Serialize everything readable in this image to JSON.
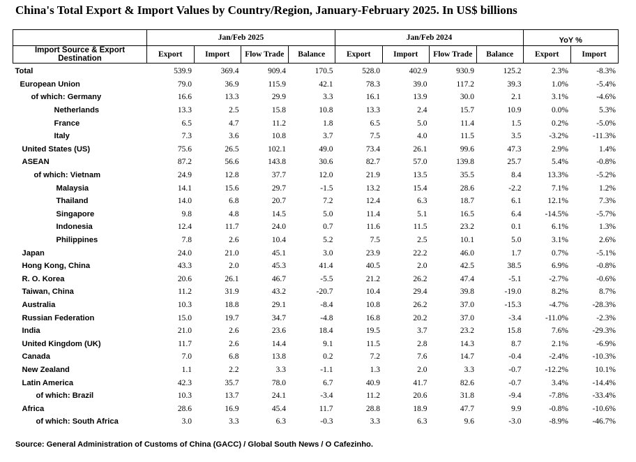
{
  "title": "China's Total Export & Import Values by Country/Region, January-February 2025. In US$ billions",
  "header": {
    "groups": [
      "Jan/Feb 2025",
      "Jan/Feb 2024",
      "YoY %"
    ],
    "source_col": "Import Source & Export Destination",
    "cols": [
      "Export",
      "Import",
      "Flow Trade",
      "Balance",
      "Export",
      "Import",
      "Flow Trade",
      "Balance",
      "Export",
      "Import"
    ]
  },
  "rows": [
    {
      "name": "Total",
      "indent": 0,
      "values": [
        "539.9",
        "369.4",
        "909.4",
        "170.5",
        "528.0",
        "402.9",
        "930.9",
        "125.2",
        "2.3%",
        "-8.3%"
      ]
    },
    {
      "name": "European Union",
      "indent": 1,
      "values": [
        "79.0",
        "36.9",
        "115.9",
        "42.1",
        "78.3",
        "39.0",
        "117.2",
        "39.3",
        "1.0%",
        "-5.4%"
      ]
    },
    {
      "name": "of which: Germany",
      "indent": 3,
      "values": [
        "16.6",
        "13.3",
        "29.9",
        "3.3",
        "16.1",
        "13.9",
        "30.0",
        "2.1",
        "3.1%",
        "-4.6%"
      ]
    },
    {
      "name": "Netherlands",
      "indent": 4,
      "values": [
        "13.3",
        "2.5",
        "15.8",
        "10.8",
        "13.3",
        "2.4",
        "15.7",
        "10.9",
        "0.0%",
        "5.3%"
      ]
    },
    {
      "name": "France",
      "indent": 4,
      "values": [
        "6.5",
        "4.7",
        "11.2",
        "1.8",
        "6.5",
        "5.0",
        "11.4",
        "1.5",
        "0.2%",
        "-5.0%"
      ]
    },
    {
      "name": "Italy",
      "indent": 4,
      "values": [
        "7.3",
        "3.6",
        "10.8",
        "3.7",
        "7.5",
        "4.0",
        "11.5",
        "3.5",
        "-3.2%",
        "-11.3%"
      ]
    },
    {
      "name": "United States (US)",
      "indent": 2,
      "values": [
        "75.6",
        "26.5",
        "102.1",
        "49.0",
        "73.4",
        "26.1",
        "99.6",
        "47.3",
        "2.9%",
        "1.4%"
      ]
    },
    {
      "name": "ASEAN",
      "indent": 2,
      "values": [
        "87.2",
        "56.6",
        "143.8",
        "30.6",
        "82.7",
        "57.0",
        "139.8",
        "25.7",
        "5.4%",
        "-0.8%"
      ]
    },
    {
      "name": "of which: Vietnam",
      "indent": 5,
      "values": [
        "24.9",
        "12.8",
        "37.7",
        "12.0",
        "21.9",
        "13.5",
        "35.5",
        "8.4",
        "13.3%",
        "-5.2%"
      ]
    },
    {
      "name": "Malaysia",
      "indent": 6,
      "values": [
        "14.1",
        "15.6",
        "29.7",
        "-1.5",
        "13.2",
        "15.4",
        "28.6",
        "-2.2",
        "7.1%",
        "1.2%"
      ]
    },
    {
      "name": "Thailand",
      "indent": 6,
      "values": [
        "14.0",
        "6.8",
        "20.7",
        "7.2",
        "12.4",
        "6.3",
        "18.7",
        "6.1",
        "12.1%",
        "7.3%"
      ]
    },
    {
      "name": "Singapore",
      "indent": 6,
      "values": [
        "9.8",
        "4.8",
        "14.5",
        "5.0",
        "11.4",
        "5.1",
        "16.5",
        "6.4",
        "-14.5%",
        "-5.7%"
      ]
    },
    {
      "name": "Indonesia",
      "indent": 6,
      "values": [
        "12.4",
        "11.7",
        "24.0",
        "0.7",
        "11.6",
        "11.5",
        "23.2",
        "0.1",
        "6.1%",
        "1.3%"
      ]
    },
    {
      "name": "Philippines",
      "indent": 6,
      "values": [
        "7.8",
        "2.6",
        "10.4",
        "5.2",
        "7.5",
        "2.5",
        "10.1",
        "5.0",
        "3.1%",
        "2.6%"
      ]
    },
    {
      "name": "Japan",
      "indent": 2,
      "values": [
        "24.0",
        "21.0",
        "45.1",
        "3.0",
        "23.9",
        "22.2",
        "46.0",
        "1.7",
        "0.7%",
        "-5.1%"
      ]
    },
    {
      "name": "Hong Kong, China",
      "indent": 2,
      "values": [
        "43.3",
        "2.0",
        "45.3",
        "41.4",
        "40.5",
        "2.0",
        "42.5",
        "38.5",
        "6.9%",
        "-0.8%"
      ]
    },
    {
      "name": "R. O. Korea",
      "indent": 2,
      "values": [
        "20.6",
        "26.1",
        "46.7",
        "-5.5",
        "21.2",
        "26.2",
        "47.4",
        "-5.1",
        "-2.7%",
        "-0.6%"
      ]
    },
    {
      "name": "Taiwan, China",
      "indent": 2,
      "values": [
        "11.2",
        "31.9",
        "43.2",
        "-20.7",
        "10.4",
        "29.4",
        "39.8",
        "-19.0",
        "8.2%",
        "8.7%"
      ]
    },
    {
      "name": "Australia",
      "indent": 2,
      "values": [
        "10.3",
        "18.8",
        "29.1",
        "-8.4",
        "10.8",
        "26.2",
        "37.0",
        "-15.3",
        "-4.7%",
        "-28.3%"
      ]
    },
    {
      "name": "Russian Federation",
      "indent": 2,
      "values": [
        "15.0",
        "19.7",
        "34.7",
        "-4.8",
        "16.8",
        "20.2",
        "37.0",
        "-3.4",
        "-11.0%",
        "-2.3%"
      ]
    },
    {
      "name": "India",
      "indent": 2,
      "values": [
        "21.0",
        "2.6",
        "23.6",
        "18.4",
        "19.5",
        "3.7",
        "23.2",
        "15.8",
        "7.6%",
        "-29.3%"
      ]
    },
    {
      "name": "United Kingdom (UK)",
      "indent": 2,
      "values": [
        "11.7",
        "2.6",
        "14.4",
        "9.1",
        "11.5",
        "2.8",
        "14.3",
        "8.7",
        "2.1%",
        "-6.9%"
      ]
    },
    {
      "name": "Canada",
      "indent": 2,
      "values": [
        "7.0",
        "6.8",
        "13.8",
        "0.2",
        "7.2",
        "7.6",
        "14.7",
        "-0.4",
        "-2.4%",
        "-10.3%"
      ]
    },
    {
      "name": "New Zealand",
      "indent": 2,
      "values": [
        "1.1",
        "2.2",
        "3.3",
        "-1.1",
        "1.3",
        "2.0",
        "3.3",
        "-0.7",
        "-12.2%",
        "10.1%"
      ]
    },
    {
      "name": "Latin America",
      "indent": 2,
      "values": [
        "42.3",
        "35.7",
        "78.0",
        "6.7",
        "40.9",
        "41.7",
        "82.6",
        "-0.7",
        "3.4%",
        "-14.4%"
      ]
    },
    {
      "name": "of which: Brazil",
      "indent": 7,
      "values": [
        "10.3",
        "13.7",
        "24.1",
        "-3.4",
        "11.2",
        "20.6",
        "31.8",
        "-9.4",
        "-7.8%",
        "-33.4%"
      ]
    },
    {
      "name": "Africa",
      "indent": 2,
      "values": [
        "28.6",
        "16.9",
        "45.4",
        "11.7",
        "28.8",
        "18.9",
        "47.7",
        "9.9",
        "-0.8%",
        "-10.6%"
      ]
    },
    {
      "name": "of which: South Africa",
      "indent": 7,
      "values": [
        "3.0",
        "3.3",
        "6.3",
        "-0.3",
        "3.3",
        "6.3",
        "9.6",
        "-3.0",
        "-8.9%",
        "-46.7%"
      ]
    }
  ],
  "source": "Source: General Administration of Customs of China (GACC) / Global South News / O Cafezinho."
}
